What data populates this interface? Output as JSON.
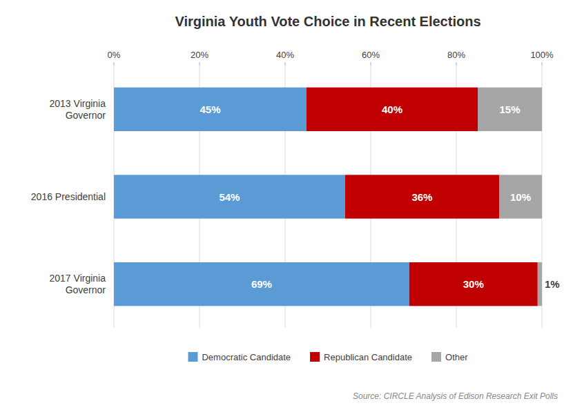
{
  "chart_data": {
    "type": "bar",
    "orientation": "horizontal",
    "stacked": true,
    "data_labels": true,
    "title": "Virginia Youth Vote Choice in Recent Elections",
    "categories": [
      "2013 Virginia\nGovernor",
      "2016 Presidential",
      "2017 Virginia\nGovernor"
    ],
    "series": [
      {
        "name": "Democratic Candidate",
        "color": "#5B9BD5",
        "values": [
          45,
          54,
          69
        ],
        "value_labels": [
          "45%",
          "54%",
          "69%"
        ]
      },
      {
        "name": "Republican Candidate",
        "color": "#C00000",
        "values": [
          40,
          36,
          30
        ],
        "value_labels": [
          "40%",
          "36%",
          "30%"
        ]
      },
      {
        "name": "Other",
        "color": "#A6A6A6",
        "values": [
          15,
          10,
          1
        ],
        "value_labels": [
          "15%",
          "10%",
          "1%"
        ]
      }
    ],
    "xlim": [
      0,
      100
    ],
    "xticks": [
      {
        "value": 0,
        "label": "0%"
      },
      {
        "value": 20,
        "label": "20%"
      },
      {
        "value": 40,
        "label": "40%"
      },
      {
        "value": 60,
        "label": "60%"
      },
      {
        "value": 80,
        "label": "80%"
      },
      {
        "value": 100,
        "label": "100%"
      }
    ],
    "grid": true,
    "legend": "bottom",
    "annotations": [
      "Source: CIRCLE Analysis of Edison Research Exit Polls"
    ]
  }
}
